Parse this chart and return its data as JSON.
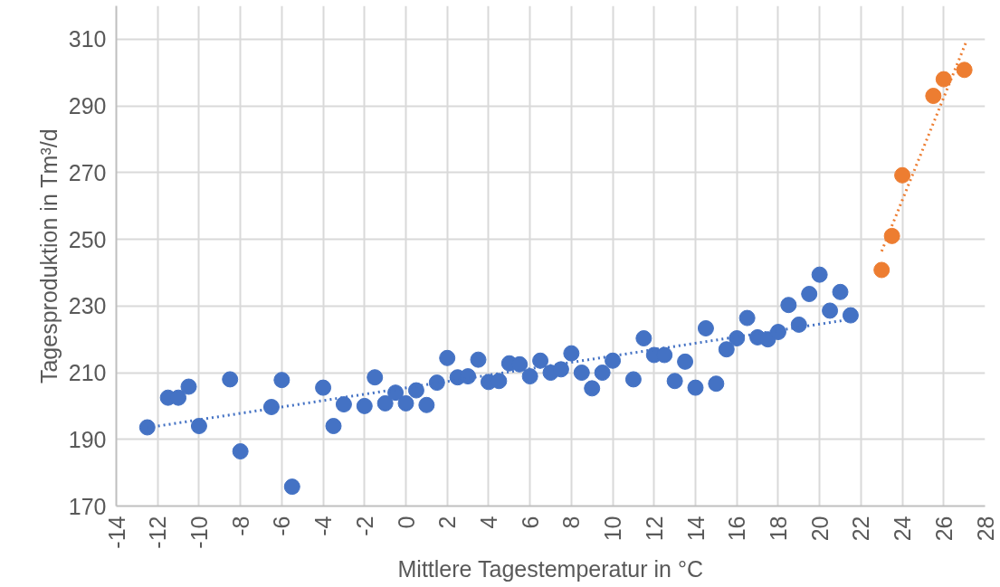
{
  "chart_data": {
    "type": "scatter",
    "xlabel": "Mittlere Tagestemperatur in °C",
    "ylabel": "Tagesproduktion in Tm³/d",
    "xlim": [
      -14,
      28
    ],
    "xticks": [
      -14,
      -12,
      -10,
      -8,
      -6,
      -4,
      -2,
      0,
      2,
      4,
      6,
      8,
      10,
      12,
      14,
      16,
      18,
      20,
      22,
      24,
      26,
      28
    ],
    "ylim": [
      170,
      320
    ],
    "yticks": [
      170,
      190,
      210,
      230,
      250,
      270,
      290,
      310
    ],
    "grid": true,
    "marker": "circle",
    "series": [
      {
        "color": "#4472c4",
        "x": [
          -12.5,
          -11.5,
          -11,
          -10.5,
          -10,
          -8.5,
          -8,
          -6.5,
          -6,
          -5.5,
          -4,
          -3.5,
          -3,
          -2,
          -1.5,
          -1,
          -0.5,
          0,
          0.5,
          1,
          1.5,
          2,
          2.5,
          3,
          3.5,
          4,
          4.5,
          5,
          5.5,
          6,
          6.5,
          7,
          7.5,
          8,
          8.5,
          9,
          9.5,
          10,
          11,
          11.5,
          12,
          12.5,
          13,
          13.5,
          14,
          14.5,
          15,
          15.5,
          16,
          16.5,
          17,
          17.5,
          18,
          18.5,
          19,
          19.5,
          20,
          20.5,
          21,
          21.5
        ],
        "values": [
          193.6,
          202.5,
          202.5,
          205.8,
          194,
          208,
          186.4,
          199.7,
          207.8,
          175.8,
          205.5,
          194,
          200.5,
          200,
          208.6,
          200.8,
          204,
          200.8,
          204.7,
          200.3,
          207,
          214.4,
          208.6,
          208.9,
          213.9,
          207.2,
          207.5,
          212.8,
          212.5,
          208.9,
          213.6,
          210,
          211,
          215.8,
          210,
          205.3,
          210,
          213.6,
          208,
          220.3,
          215.3,
          215.3,
          207.5,
          213.3,
          205.5,
          223.3,
          206.7,
          217,
          220.3,
          226.4,
          220.6,
          220,
          222.2,
          230.3,
          224.4,
          233.6,
          239.4,
          228.6,
          234.2,
          227.2
        ]
      },
      {
        "color": "#ed7d31",
        "x": [
          23,
          23.5,
          24,
          25.5,
          26,
          27
        ],
        "values": [
          240.8,
          251,
          269.2,
          293,
          298,
          300.8
        ]
      },
      {
        "type": "line",
        "color": "#4472c4",
        "line_style": "dotted",
        "marker": "none",
        "x": [
          -12.5,
          21.5
        ],
        "values": [
          193.5,
          226
        ]
      },
      {
        "type": "line",
        "color": "#ed7d31",
        "line_style": "dotted",
        "marker": "none",
        "x": [
          23,
          27.1
        ],
        "values": [
          246.4,
          309.4
        ]
      }
    ]
  }
}
